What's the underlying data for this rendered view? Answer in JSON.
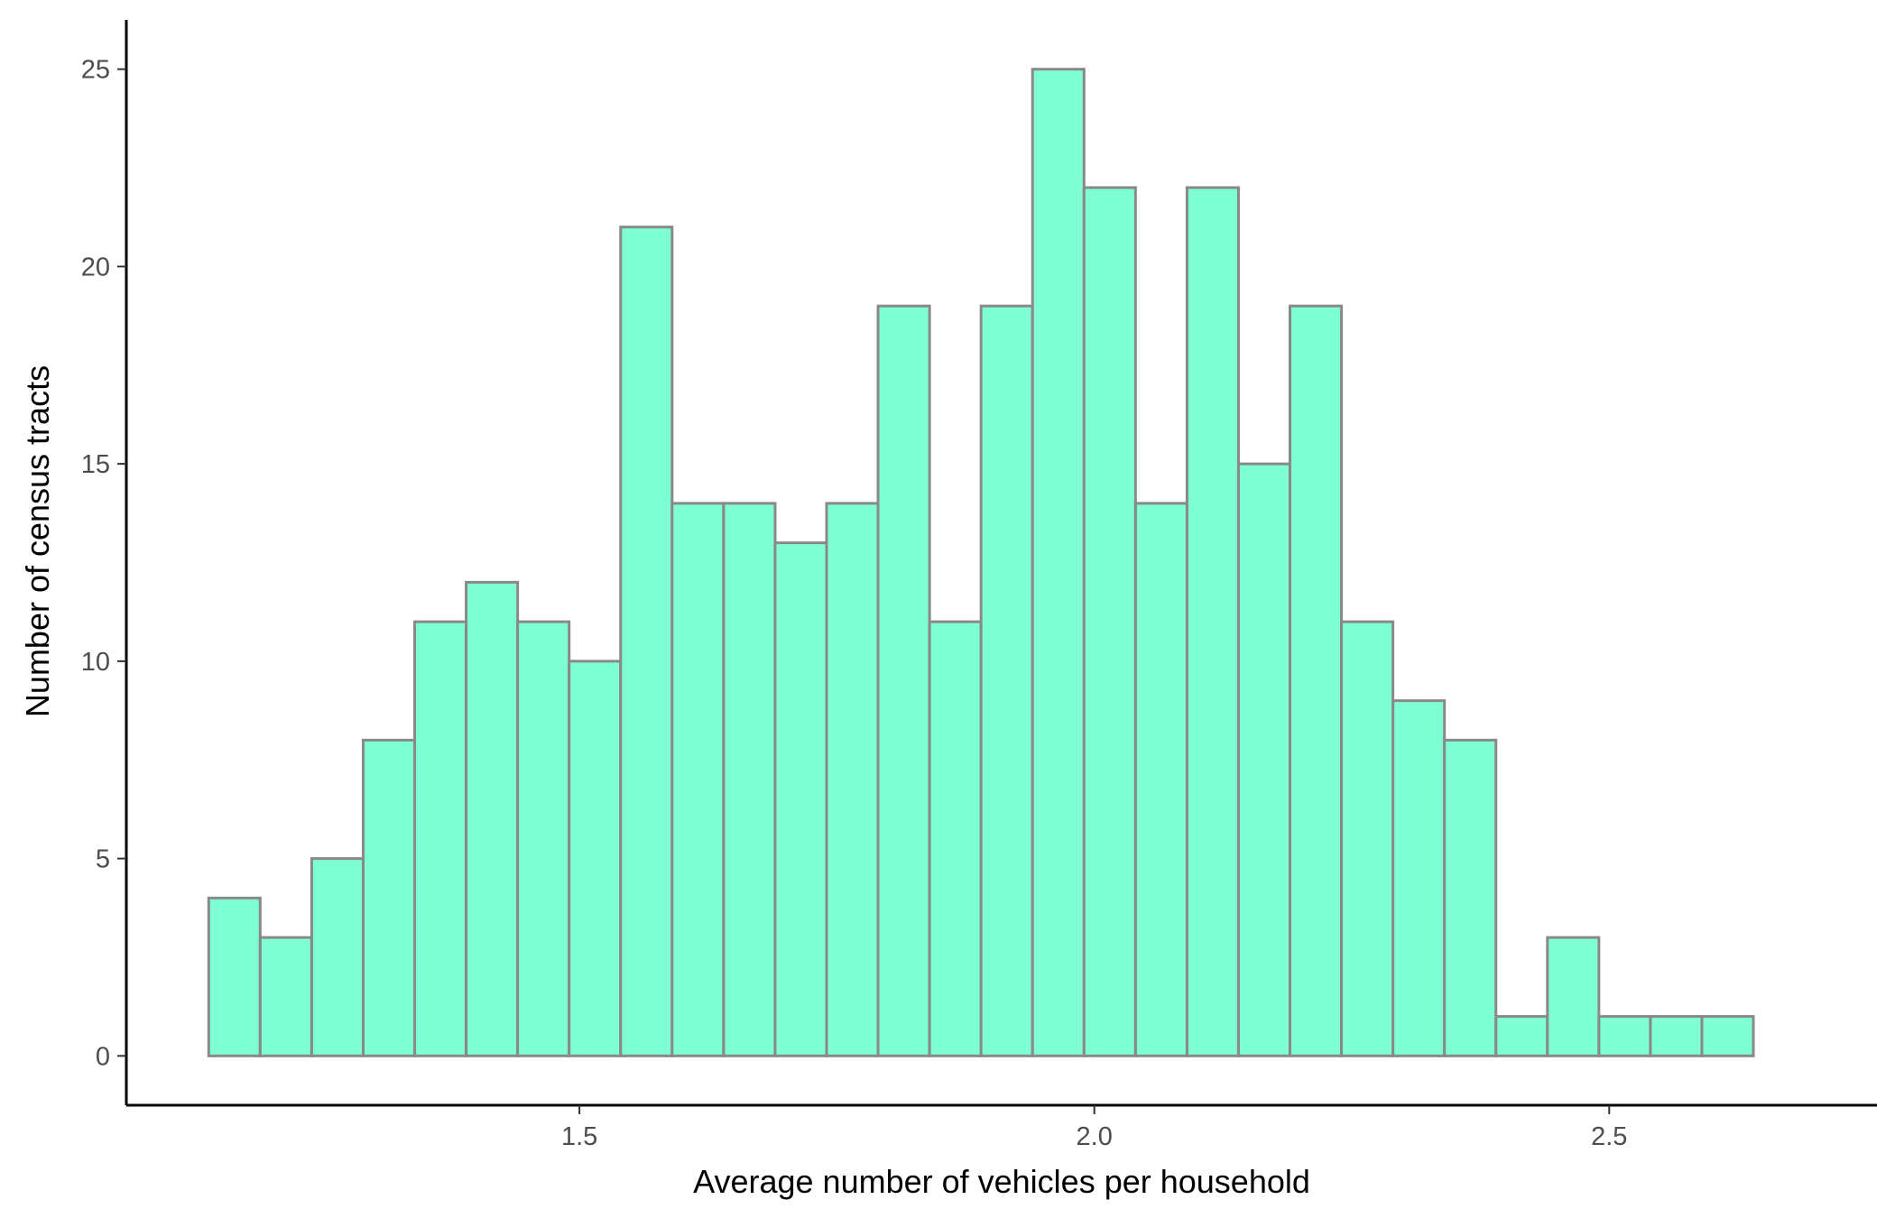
{
  "chart_data": {
    "type": "bar",
    "subtype": "histogram",
    "xlabel": "Average number of vehicles per household",
    "ylabel": "Number of census tracts",
    "xlim": [
      1.06,
      2.76
    ],
    "ylim": [
      -1.25,
      26.25
    ],
    "x_ticks": [
      1.5,
      2.0,
      2.5
    ],
    "x_tick_labels": [
      "1.5",
      "2.0",
      "2.5"
    ],
    "y_ticks": [
      0,
      5,
      10,
      15,
      20,
      25
    ],
    "y_tick_labels": [
      "0",
      "5",
      "10",
      "15",
      "20",
      "25"
    ],
    "bin_start": 1.14,
    "bin_width": 0.05,
    "values": [
      4,
      3,
      5,
      8,
      11,
      12,
      11,
      10,
      21,
      14,
      14,
      13,
      14,
      19,
      11,
      19,
      25,
      22,
      14,
      22,
      15,
      19,
      11,
      9,
      8,
      1,
      3,
      1,
      1,
      1
    ],
    "bar_fill": "#7fffd4",
    "bar_stroke": "#898989",
    "grid": false,
    "legend": "none"
  }
}
